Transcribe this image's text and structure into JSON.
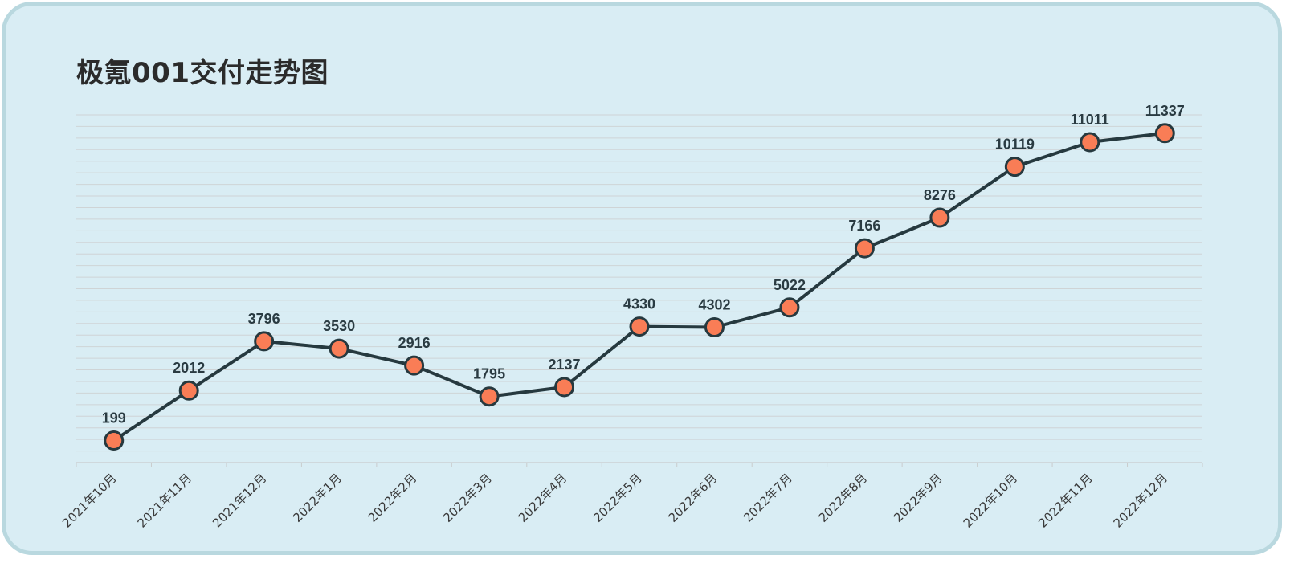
{
  "title": "极氪001交付走势图",
  "colors": {
    "background": "#d9edf4",
    "frame": "#b9d8df",
    "line": "#26393f",
    "marker_fill": "#f97d56",
    "grid": "#cfd4d6"
  },
  "chart_data": {
    "type": "line",
    "title": "极氪001交付走势图",
    "xlabel": "",
    "ylabel": "",
    "categories": [
      "2021年10月",
      "2021年11月",
      "2021年12月",
      "2022年1月",
      "2022年2月",
      "2022年3月",
      "2022年4月",
      "2022年5月",
      "2022年6月",
      "2022年7月",
      "2022年8月",
      "2022年9月",
      "2022年10月",
      "2022年11月",
      "2022年12月"
    ],
    "series": [
      {
        "values": [
          199,
          2012,
          3796,
          3530,
          2916,
          1795,
          2137,
          4330,
          4302,
          5022,
          7166,
          8276,
          10119,
          11011,
          11337
        ]
      }
    ],
    "ylim": [
      -600,
      12000
    ],
    "grid": true,
    "legend": "none",
    "data_labels": true
  }
}
